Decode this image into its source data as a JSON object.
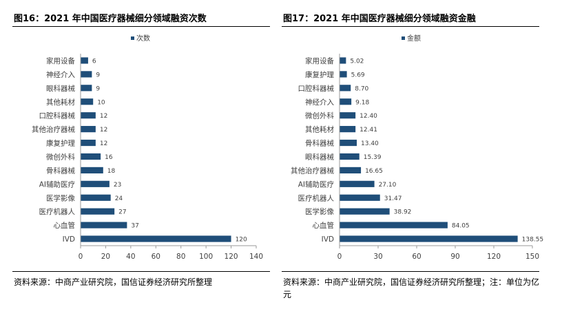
{
  "colors": {
    "bar": "#1F4E79",
    "axis": "#9a9a9a",
    "rule": "#000000"
  },
  "left": {
    "title": "图16：2021 年中国医疗器械细分领域融资次数",
    "source": "资料来源：中商产业研究院，国信证券经济研究所整理"
  },
  "right": {
    "title": "图17：2021 年中国医疗器械细分领域融资金融",
    "source": "资料来源：中商产业研究院，国信证券经济研究所整理；注：单位为亿元"
  },
  "chart_data": [
    {
      "type": "bar",
      "orientation": "horizontal",
      "legend_position": "top",
      "grid": false,
      "series": [
        {
          "name": "次数",
          "categories": [
            "家用设备",
            "神经介入",
            "眼科器械",
            "其他耗材",
            "口腔科器械",
            "其他治疗器械",
            "康复护理",
            "微创外科",
            "骨科器械",
            "AI辅助医疗",
            "医学影像",
            "医疗机器人",
            "心血管",
            "IVD"
          ],
          "values": [
            6,
            9,
            9,
            10,
            12,
            12,
            12,
            16,
            18,
            23,
            24,
            27,
            37,
            120
          ],
          "labels": [
            "6",
            "9",
            "9",
            "10",
            "12",
            "12",
            "12",
            "16",
            "18",
            "23",
            "24",
            "27",
            "37",
            "120"
          ]
        }
      ],
      "xlim": [
        0,
        140
      ],
      "xticks": [
        "0",
        "20",
        "40",
        "60",
        "80",
        "100",
        "120",
        "140"
      ]
    },
    {
      "type": "bar",
      "orientation": "horizontal",
      "legend_position": "top",
      "grid": false,
      "series": [
        {
          "name": "金额",
          "categories": [
            "家用设备",
            "康复护理",
            "口腔科器械",
            "神经介入",
            "微创外科",
            "其他耗材",
            "骨科器械",
            "眼科器械",
            "其他治疗器械",
            "AI辅助医疗",
            "医疗机器人",
            "医学影像",
            "心血管",
            "IVD"
          ],
          "values": [
            5.02,
            5.69,
            8.7,
            9.18,
            12.4,
            12.41,
            13.4,
            15.39,
            16.65,
            27.1,
            31.47,
            38.92,
            84.05,
            138.55
          ],
          "labels": [
            "5.02",
            "5.69",
            "8.70",
            "9.18",
            "12.40",
            "12.41",
            "13.40",
            "15.39",
            "16.65",
            "27.10",
            "31.47",
            "38.92",
            "84.05",
            "138.55"
          ]
        }
      ],
      "xlim": [
        0,
        150
      ],
      "xticks": [
        "0",
        "30",
        "60",
        "90",
        "120",
        "150"
      ]
    }
  ]
}
